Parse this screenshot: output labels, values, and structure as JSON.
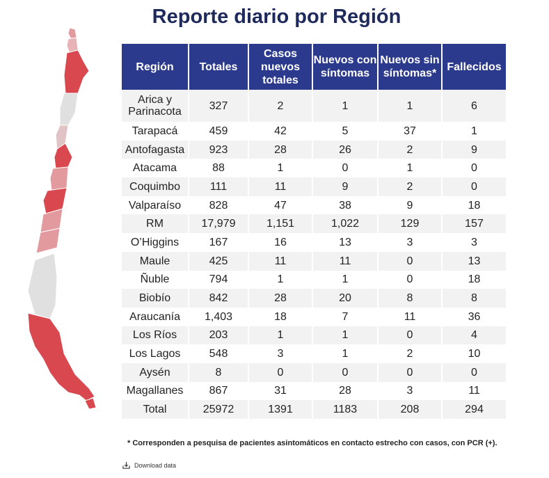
{
  "title": "Reporte diario por Región",
  "footnote": "* Corresponden a pesquisa de pacientes asintomáticos en contacto estrecho con casos, con PCR (+).",
  "download_label": "Download data",
  "download_icon": "download-icon",
  "colors": {
    "header_bg": "#2b3a8c",
    "title": "#1f2a5c",
    "map_dark": "#d9474f",
    "map_mid": "#e39a9f",
    "map_light": "#e0e0e0"
  },
  "chart_data": {
    "type": "table",
    "columns": [
      "Región",
      "Totales",
      "Casos nuevos totales",
      "Nuevos con síntomas",
      "Nuevos sin síntomas*",
      "Fallecidos"
    ],
    "rows": [
      [
        "Arica y Parinacota",
        "327",
        "2",
        "1",
        "1",
        "6"
      ],
      [
        "Tarapacá",
        "459",
        "42",
        "5",
        "37",
        "1"
      ],
      [
        "Antofagasta",
        "923",
        "28",
        "26",
        "2",
        "9"
      ],
      [
        "Atacama",
        "88",
        "1",
        "0",
        "1",
        "0"
      ],
      [
        "Coquimbo",
        "111",
        "11",
        "9",
        "2",
        "0"
      ],
      [
        "Valparaíso",
        "828",
        "47",
        "38",
        "9",
        "18"
      ],
      [
        "RM",
        "17,979",
        "1,151",
        "1,022",
        "129",
        "157"
      ],
      [
        "O’Higgins",
        "167",
        "16",
        "13",
        "3",
        "3"
      ],
      [
        "Maule",
        "425",
        "11",
        "11",
        "0",
        "13"
      ],
      [
        "Ñuble",
        "794",
        "1",
        "1",
        "0",
        "18"
      ],
      [
        "Biobío",
        "842",
        "28",
        "20",
        "8",
        "8"
      ],
      [
        "Araucanía",
        "1,403",
        "18",
        "7",
        "11",
        "36"
      ],
      [
        "Los Ríos",
        "203",
        "1",
        "1",
        "0",
        "4"
      ],
      [
        "Los Lagos",
        "548",
        "3",
        "1",
        "2",
        "10"
      ],
      [
        "Aysén",
        "8",
        "0",
        "0",
        "0",
        "0"
      ],
      [
        "Magallanes",
        "867",
        "31",
        "28",
        "3",
        "11"
      ]
    ],
    "total": [
      "Total",
      "25972",
      "1391",
      "1183",
      "208",
      "294"
    ]
  }
}
